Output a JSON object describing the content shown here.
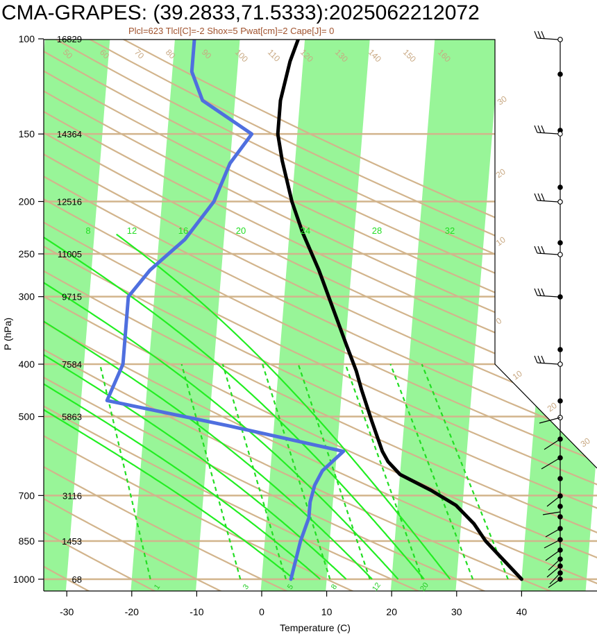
{
  "header": {
    "title": "CMA-GRAPES: (39.2833,71.5333):2025062212072",
    "subtitle": "Plcl=623 Tlcl[C]=-2 Shox=5 Pwat[cm]=2 Cape[J]= 0"
  },
  "chart_data": {
    "type": "line",
    "xlabel": "Temperature (C)",
    "ylabel": "P (hPa)",
    "xlim": [
      -33,
      52
    ],
    "ylim": [
      1050,
      100
    ],
    "y_scale": "log",
    "x_ticks": [
      "-30",
      "-20",
      "-10",
      "0",
      "10",
      "20",
      "30",
      "40"
    ],
    "pressure_levels": [
      {
        "p": 100,
        "label": "100",
        "height": "16829"
      },
      {
        "p": 150,
        "label": "150",
        "height": "14364"
      },
      {
        "p": 200,
        "label": "200",
        "height": "12516"
      },
      {
        "p": 250,
        "label": "250",
        "height": "11005"
      },
      {
        "p": 300,
        "label": "300",
        "height": "9715"
      },
      {
        "p": 400,
        "label": "400",
        "height": "7584"
      },
      {
        "p": 500,
        "label": "500",
        "height": "5863"
      },
      {
        "p": 700,
        "label": "700",
        "height": "3116"
      },
      {
        "p": 850,
        "label": "850",
        "height": "1453"
      },
      {
        "p": 1000,
        "label": "1000",
        "height": "68"
      }
    ],
    "series": [
      {
        "color": "#000000",
        "points": [
          [
            40,
            1000
          ],
          [
            34,
            850
          ],
          [
            32,
            790
          ],
          [
            29,
            730
          ],
          [
            25,
            685
          ],
          [
            20,
            640
          ],
          [
            18,
            606
          ],
          [
            17,
            580
          ],
          [
            15,
            510
          ],
          [
            13,
            445
          ],
          [
            12,
            412
          ],
          [
            10,
            365
          ],
          [
            5,
            268
          ],
          [
            2,
            228
          ],
          [
            0,
            200
          ],
          [
            -2,
            168
          ],
          [
            -3,
            150
          ],
          [
            -3,
            130
          ],
          [
            -2,
            110
          ],
          [
            -1,
            100
          ]
        ],
        "skewed": true
      },
      {
        "color": "#4f6fdf",
        "points": [
          [
            4.5,
            1000
          ],
          [
            5.5,
            850
          ],
          [
            6.5,
            770
          ],
          [
            6.5,
            720
          ],
          [
            7,
            670
          ],
          [
            8,
            630
          ],
          [
            11,
            580
          ],
          [
            -7,
            520
          ],
          [
            -26,
            467
          ],
          [
            -24,
            400
          ],
          [
            -24,
            300
          ],
          [
            -21,
            268
          ],
          [
            -16,
            235
          ],
          [
            -12,
            200
          ],
          [
            -10,
            170
          ],
          [
            -7,
            150
          ],
          [
            -15,
            130
          ],
          [
            -17,
            115
          ],
          [
            -17,
            100
          ]
        ],
        "skewed": true
      }
    ],
    "isotherm_labels": [
      "30",
      "20",
      "10",
      "0",
      "10",
      "20",
      "30",
      "40",
      "50",
      "60",
      "70",
      "80",
      "90",
      "100",
      "110",
      "120",
      "130",
      "140",
      "150",
      "160"
    ],
    "moist_adiabat_labels": [
      "8",
      "12",
      "16",
      "20",
      "24",
      "28",
      "32"
    ],
    "mixing_ratio_labels": [
      "1",
      "3",
      "5",
      "8",
      "12",
      "20"
    ],
    "wind_barb_side": "right",
    "colors": {
      "dry_adiabat": "#d2b48c",
      "isotherm_band": "#98f598",
      "moist_adiabat": "#22ee22",
      "mixing_ratio": "#22dd22",
      "temperature": "#000000",
      "dewpoint": "#4f6fdf"
    }
  }
}
